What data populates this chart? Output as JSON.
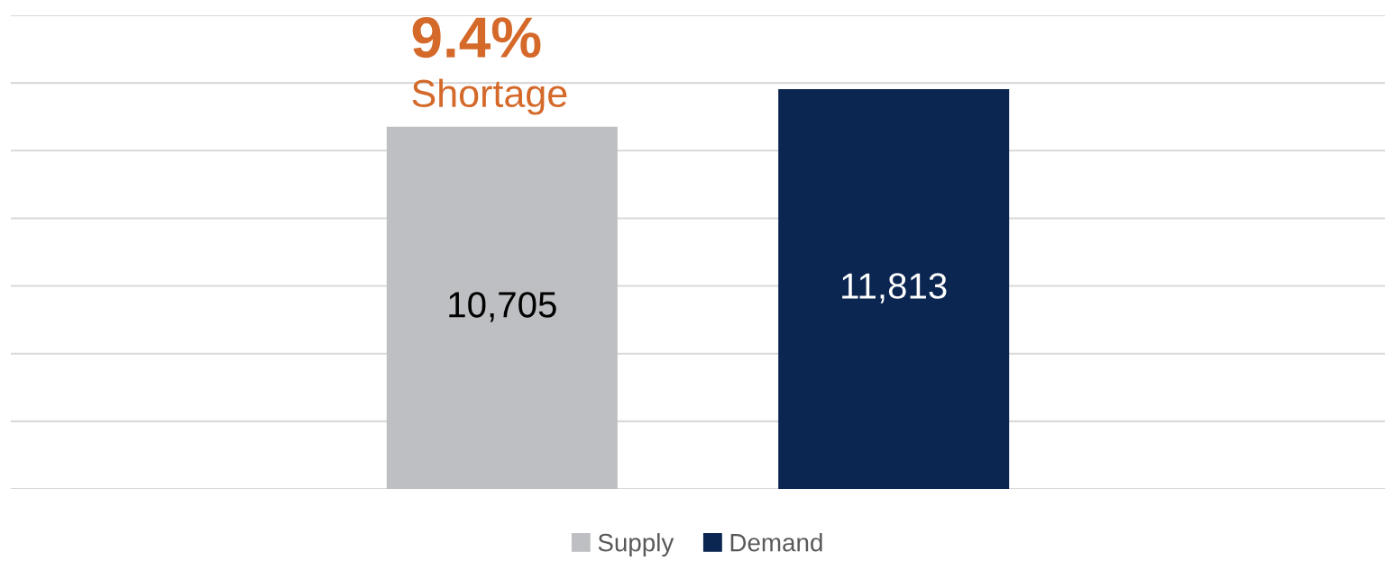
{
  "chart_data": {
    "type": "bar",
    "categories": [
      null
    ],
    "series": [
      {
        "name": "Supply",
        "color": "#bebfc2",
        "values": [
          10705
        ],
        "value_labels": [
          "10,705"
        ]
      },
      {
        "name": "Demand",
        "color": "#0b2651",
        "values": [
          11813
        ],
        "value_labels": [
          "11,813"
        ]
      }
    ],
    "grid": "y",
    "legend": "bottom",
    "annotations": [
      "9.4%",
      "Shortage"
    ]
  }
}
